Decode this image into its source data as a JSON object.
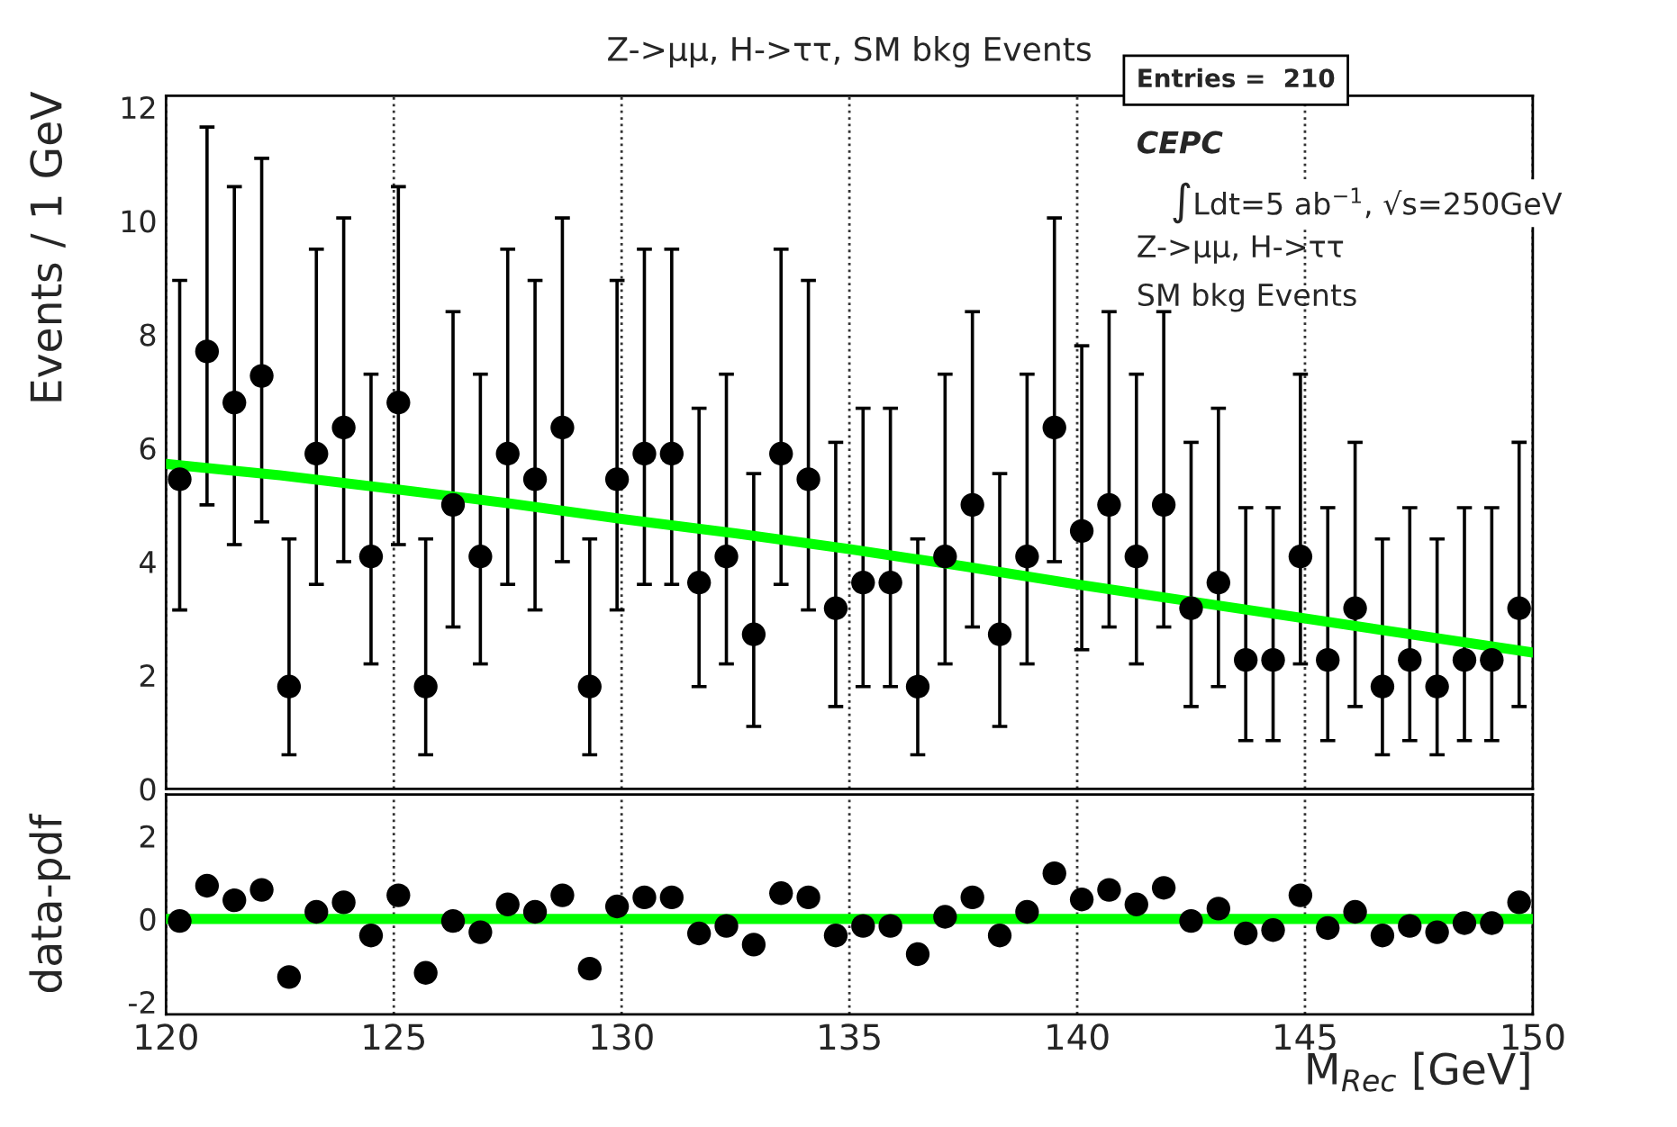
{
  "chart_data": [
    {
      "type": "scatter",
      "title": "Z->μμ, H->ττ, SM bkg Events",
      "ylabel": "Events / 1 GeV",
      "xlim": [
        120,
        150
      ],
      "xticks": [
        120,
        125,
        130,
        135,
        140,
        145,
        150
      ],
      "ylim": [
        0,
        12.2
      ],
      "yticks": [
        0,
        2,
        4,
        6,
        8,
        10,
        12
      ],
      "tick_labels": "y",
      "grid": "x",
      "legend": false,
      "annotations": [
        "Entries =  210",
        "CEPC",
        "∫Ldt=5 ab$^{−1}$, √s=250GeV",
        "Z->μμ, H->ττ",
        "SM bkg Events"
      ],
      "series": [
        {
          "marker": "circle",
          "color": "#000000",
          "x": [
            120.3,
            120.9,
            121.5,
            122.1,
            122.7,
            123.3,
            123.9,
            124.5,
            125.1,
            125.7,
            126.3,
            126.9,
            127.5,
            128.1,
            128.7,
            129.3,
            129.9,
            130.5,
            131.1,
            131.7,
            132.3,
            132.9,
            133.5,
            134.1,
            134.7,
            135.3,
            135.9,
            136.5,
            137.1,
            137.7,
            138.3,
            138.9,
            139.5,
            140.1,
            140.7,
            141.3,
            141.9,
            142.5,
            143.1,
            143.7,
            144.3,
            144.9,
            145.5,
            146.1,
            146.7,
            147.3,
            147.9,
            148.5,
            149.1,
            149.7
          ],
          "values": [
            5.45,
            7.7,
            6.8,
            7.27,
            1.8,
            5.9,
            6.36,
            4.09,
            6.8,
            1.8,
            5.0,
            4.09,
            5.9,
            5.45,
            6.36,
            1.8,
            5.45,
            5.9,
            5.9,
            3.63,
            4.09,
            2.72,
            5.9,
            5.45,
            3.18,
            3.63,
            3.63,
            1.8,
            4.09,
            5.0,
            2.72,
            4.09,
            6.36,
            4.54,
            5.0,
            4.09,
            5.0,
            3.18,
            3.63,
            2.27,
            2.27,
            4.09,
            2.27,
            3.18,
            1.8,
            2.27,
            1.8,
            2.27,
            2.27,
            3.18
          ],
          "errors": [
            [
              3.15,
              8.95
            ],
            [
              5.0,
              11.65
            ],
            [
              4.3,
              10.6
            ],
            [
              4.7,
              11.1
            ],
            [
              0.6,
              4.4
            ],
            [
              3.6,
              9.5
            ],
            [
              4.0,
              10.05
            ],
            [
              2.2,
              7.3
            ],
            [
              4.3,
              10.6
            ],
            [
              0.6,
              4.4
            ],
            [
              2.85,
              8.4
            ],
            [
              2.2,
              7.3
            ],
            [
              3.6,
              9.5
            ],
            [
              3.15,
              8.95
            ],
            [
              4.0,
              10.05
            ],
            [
              0.6,
              4.4
            ],
            [
              3.15,
              8.95
            ],
            [
              3.6,
              9.5
            ],
            [
              3.6,
              9.5
            ],
            [
              1.8,
              6.7
            ],
            [
              2.2,
              7.3
            ],
            [
              1.1,
              5.55
            ],
            [
              3.6,
              9.5
            ],
            [
              3.15,
              8.95
            ],
            [
              1.45,
              6.1
            ],
            [
              1.8,
              6.7
            ],
            [
              1.8,
              6.7
            ],
            [
              0.6,
              4.4
            ],
            [
              2.2,
              7.3
            ],
            [
              2.85,
              8.4
            ],
            [
              1.1,
              5.55
            ],
            [
              2.2,
              7.3
            ],
            [
              4.0,
              10.05
            ],
            [
              2.45,
              7.8
            ],
            [
              2.85,
              8.4
            ],
            [
              2.2,
              7.3
            ],
            [
              2.85,
              8.4
            ],
            [
              1.45,
              6.1
            ],
            [
              1.8,
              6.7
            ],
            [
              0.85,
              4.95
            ],
            [
              0.85,
              4.95
            ],
            [
              2.2,
              7.3
            ],
            [
              0.85,
              4.95
            ],
            [
              1.45,
              6.1
            ],
            [
              0.6,
              4.4
            ],
            [
              0.85,
              4.95
            ],
            [
              0.6,
              4.4
            ],
            [
              0.85,
              4.95
            ],
            [
              0.85,
              4.95
            ],
            [
              1.45,
              6.1
            ]
          ]
        },
        {
          "type": "line",
          "color": "#00ff00",
          "x": [
            120,
            122.5,
            125,
            127.5,
            130,
            132.5,
            135,
            137.5,
            140,
            142.5,
            145,
            147.5,
            150
          ],
          "values": [
            5.72,
            5.52,
            5.28,
            5.03,
            4.75,
            4.5,
            4.22,
            3.92,
            3.6,
            3.3,
            3.0,
            2.7,
            2.4
          ]
        }
      ]
    },
    {
      "type": "scatter",
      "ylabel": "data-pdf",
      "xlabel": "M$_{Rec}$ [GeV]",
      "xlim": [
        120,
        150
      ],
      "xticks": [
        120,
        125,
        130,
        135,
        140,
        145,
        150
      ],
      "ylim": [
        -2.3,
        3
      ],
      "yticks": [
        -2,
        0,
        2
      ],
      "grid": "x",
      "legend": false,
      "series": [
        {
          "marker": "circle",
          "color": "#000000",
          "x": [
            120.3,
            120.9,
            121.5,
            122.1,
            122.7,
            123.3,
            123.9,
            124.5,
            125.1,
            125.7,
            126.3,
            126.9,
            127.5,
            128.1,
            128.7,
            129.3,
            129.9,
            130.5,
            131.1,
            131.7,
            132.3,
            132.9,
            133.5,
            134.1,
            134.7,
            135.3,
            135.9,
            136.5,
            137.1,
            137.7,
            138.3,
            138.9,
            139.5,
            140.1,
            140.7,
            141.3,
            141.9,
            142.5,
            143.1,
            143.7,
            144.3,
            144.9,
            145.5,
            146.1,
            146.7,
            147.3,
            147.9,
            148.5,
            149.1,
            149.7
          ],
          "values": [
            -0.05,
            0.8,
            0.45,
            0.7,
            -1.4,
            0.17,
            0.4,
            -0.4,
            0.57,
            -1.3,
            -0.05,
            -0.32,
            0.35,
            0.17,
            0.57,
            -1.2,
            0.3,
            0.52,
            0.52,
            -0.35,
            -0.17,
            -0.62,
            0.62,
            0.52,
            -0.4,
            -0.17,
            -0.17,
            -0.85,
            0.05,
            0.52,
            -0.4,
            0.17,
            1.1,
            0.47,
            0.7,
            0.35,
            0.75,
            -0.05,
            0.25,
            -0.35,
            -0.27,
            0.57,
            -0.22,
            0.17,
            -0.4,
            -0.17,
            -0.32,
            -0.1,
            -0.1,
            0.4
          ]
        },
        {
          "type": "line",
          "color": "#00ff00",
          "x": [
            120,
            150
          ],
          "values": [
            0,
            0
          ]
        }
      ]
    }
  ]
}
